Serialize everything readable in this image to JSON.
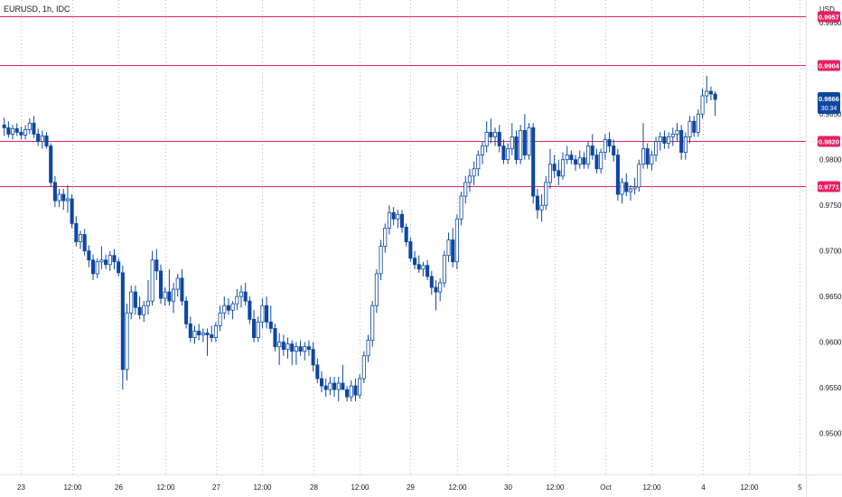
{
  "header": {
    "symbol": "EURUSD, 1h, IDC",
    "currency": "USD"
  },
  "chart_data": {
    "type": "candlestick",
    "y_axis": {
      "ylim": [
        0.9455,
        0.9975
      ],
      "ticks": [
        "0.9500",
        "0.9550",
        "0.9600",
        "0.9650",
        "0.9700",
        "0.9750",
        "0.9800",
        "0.9850",
        "0.9950"
      ]
    },
    "x_axis": {
      "xlim": [
        -1,
        189
      ],
      "ticks": [
        {
          "i": 4,
          "label": "23"
        },
        {
          "i": 16,
          "label": "12:00"
        },
        {
          "i": 27,
          "label": "26"
        },
        {
          "i": 38,
          "label": "12:00"
        },
        {
          "i": 50,
          "label": "27"
        },
        {
          "i": 61,
          "label": "12:00"
        },
        {
          "i": 73,
          "label": "28"
        },
        {
          "i": 84,
          "label": "12:00"
        },
        {
          "i": 96,
          "label": "29"
        },
        {
          "i": 107,
          "label": "12:00"
        },
        {
          "i": 119,
          "label": "30"
        },
        {
          "i": 130,
          "label": "12:00"
        },
        {
          "i": 142,
          "label": "Oct"
        },
        {
          "i": 153,
          "label": "12:00"
        },
        {
          "i": 165,
          "label": "4"
        },
        {
          "i": 176,
          "label": "12:00"
        },
        {
          "i": 188,
          "label": "5"
        }
      ]
    },
    "grid": true,
    "horizontal_levels": [
      {
        "value": 0.9957,
        "label": "0.9957"
      },
      {
        "value": 0.9904,
        "label": "0.9904"
      },
      {
        "value": 0.982,
        "label": "0.9820"
      },
      {
        "value": 0.9771,
        "label": "0.9771"
      }
    ],
    "last_price": {
      "value": 0.9866,
      "label": "0.9866",
      "countdown": "30:34"
    },
    "colors": {
      "up": "#ffffff",
      "down": "#0d47a1",
      "wick": "#0d47a1",
      "level": "#e91e63",
      "grid": "#b8bcc6"
    },
    "candles": [
      {
        "o": 0.9838,
        "h": 0.9846,
        "l": 0.9826,
        "c": 0.9835
      },
      {
        "o": 0.9835,
        "h": 0.9842,
        "l": 0.9824,
        "c": 0.9828
      },
      {
        "o": 0.9828,
        "h": 0.9838,
        "l": 0.9822,
        "c": 0.9834
      },
      {
        "o": 0.9834,
        "h": 0.984,
        "l": 0.9826,
        "c": 0.983
      },
      {
        "o": 0.983,
        "h": 0.9836,
        "l": 0.9822,
        "c": 0.9827
      },
      {
        "o": 0.9827,
        "h": 0.9838,
        "l": 0.9822,
        "c": 0.9833
      },
      {
        "o": 0.9833,
        "h": 0.9845,
        "l": 0.9828,
        "c": 0.984
      },
      {
        "o": 0.984,
        "h": 0.9848,
        "l": 0.9824,
        "c": 0.9828
      },
      {
        "o": 0.9828,
        "h": 0.9834,
        "l": 0.9815,
        "c": 0.982
      },
      {
        "o": 0.982,
        "h": 0.9832,
        "l": 0.9812,
        "c": 0.9826
      },
      {
        "o": 0.9826,
        "h": 0.983,
        "l": 0.9812,
        "c": 0.9815
      },
      {
        "o": 0.9815,
        "h": 0.9818,
        "l": 0.977,
        "c": 0.9775
      },
      {
        "o": 0.9775,
        "h": 0.9782,
        "l": 0.9748,
        "c": 0.9755
      },
      {
        "o": 0.9755,
        "h": 0.9768,
        "l": 0.9748,
        "c": 0.9762
      },
      {
        "o": 0.9762,
        "h": 0.9768,
        "l": 0.9745,
        "c": 0.9755
      },
      {
        "o": 0.9755,
        "h": 0.9772,
        "l": 0.9742,
        "c": 0.9757
      },
      {
        "o": 0.9757,
        "h": 0.9762,
        "l": 0.9725,
        "c": 0.973
      },
      {
        "o": 0.973,
        "h": 0.9738,
        "l": 0.9705,
        "c": 0.971
      },
      {
        "o": 0.971,
        "h": 0.9722,
        "l": 0.9702,
        "c": 0.9718
      },
      {
        "o": 0.9718,
        "h": 0.9724,
        "l": 0.9695,
        "c": 0.97
      },
      {
        "o": 0.97,
        "h": 0.9706,
        "l": 0.9682,
        "c": 0.969
      },
      {
        "o": 0.969,
        "h": 0.9696,
        "l": 0.9668,
        "c": 0.9675
      },
      {
        "o": 0.9675,
        "h": 0.9692,
        "l": 0.967,
        "c": 0.9688
      },
      {
        "o": 0.9688,
        "h": 0.9705,
        "l": 0.968,
        "c": 0.969
      },
      {
        "o": 0.969,
        "h": 0.9696,
        "l": 0.968,
        "c": 0.9685
      },
      {
        "o": 0.9685,
        "h": 0.97,
        "l": 0.9678,
        "c": 0.9695
      },
      {
        "o": 0.9695,
        "h": 0.9702,
        "l": 0.968,
        "c": 0.9688
      },
      {
        "o": 0.9688,
        "h": 0.9692,
        "l": 0.9672,
        "c": 0.9676
      },
      {
        "o": 0.9676,
        "h": 0.9684,
        "l": 0.9548,
        "c": 0.957
      },
      {
        "o": 0.957,
        "h": 0.9642,
        "l": 0.9558,
        "c": 0.9632
      },
      {
        "o": 0.9632,
        "h": 0.9662,
        "l": 0.9625,
        "c": 0.9655
      },
      {
        "o": 0.9655,
        "h": 0.9662,
        "l": 0.963,
        "c": 0.9638
      },
      {
        "o": 0.9638,
        "h": 0.965,
        "l": 0.9625,
        "c": 0.963
      },
      {
        "o": 0.963,
        "h": 0.9645,
        "l": 0.9622,
        "c": 0.964
      },
      {
        "o": 0.964,
        "h": 0.9668,
        "l": 0.963,
        "c": 0.9645
      },
      {
        "o": 0.9645,
        "h": 0.97,
        "l": 0.964,
        "c": 0.969
      },
      {
        "o": 0.969,
        "h": 0.9702,
        "l": 0.9668,
        "c": 0.9678
      },
      {
        "o": 0.9678,
        "h": 0.9685,
        "l": 0.9642,
        "c": 0.9648
      },
      {
        "o": 0.9648,
        "h": 0.966,
        "l": 0.964,
        "c": 0.9655
      },
      {
        "o": 0.9655,
        "h": 0.968,
        "l": 0.964,
        "c": 0.9645
      },
      {
        "o": 0.9645,
        "h": 0.9665,
        "l": 0.9632,
        "c": 0.9658
      },
      {
        "o": 0.9658,
        "h": 0.9675,
        "l": 0.965,
        "c": 0.967
      },
      {
        "o": 0.967,
        "h": 0.968,
        "l": 0.964,
        "c": 0.9645
      },
      {
        "o": 0.9645,
        "h": 0.965,
        "l": 0.9615,
        "c": 0.962
      },
      {
        "o": 0.962,
        "h": 0.9628,
        "l": 0.96,
        "c": 0.9605
      },
      {
        "o": 0.9605,
        "h": 0.9618,
        "l": 0.9598,
        "c": 0.9612
      },
      {
        "o": 0.9612,
        "h": 0.962,
        "l": 0.9602,
        "c": 0.9608
      },
      {
        "o": 0.9608,
        "h": 0.9615,
        "l": 0.96,
        "c": 0.961
      },
      {
        "o": 0.961,
        "h": 0.9615,
        "l": 0.9585,
        "c": 0.9608
      },
      {
        "o": 0.9608,
        "h": 0.9618,
        "l": 0.96,
        "c": 0.9605
      },
      {
        "o": 0.9605,
        "h": 0.9622,
        "l": 0.96,
        "c": 0.9618
      },
      {
        "o": 0.9618,
        "h": 0.964,
        "l": 0.9612,
        "c": 0.9632
      },
      {
        "o": 0.9632,
        "h": 0.965,
        "l": 0.9625,
        "c": 0.964
      },
      {
        "o": 0.964,
        "h": 0.9648,
        "l": 0.963,
        "c": 0.9635
      },
      {
        "o": 0.9635,
        "h": 0.9645,
        "l": 0.9625,
        "c": 0.9642
      },
      {
        "o": 0.9642,
        "h": 0.9658,
        "l": 0.9635,
        "c": 0.965
      },
      {
        "o": 0.965,
        "h": 0.9662,
        "l": 0.9638,
        "c": 0.9655
      },
      {
        "o": 0.9655,
        "h": 0.9665,
        "l": 0.964,
        "c": 0.9645
      },
      {
        "o": 0.9645,
        "h": 0.965,
        "l": 0.962,
        "c": 0.9625
      },
      {
        "o": 0.9625,
        "h": 0.9635,
        "l": 0.96,
        "c": 0.9605
      },
      {
        "o": 0.9605,
        "h": 0.9628,
        "l": 0.96,
        "c": 0.9622
      },
      {
        "o": 0.9622,
        "h": 0.9648,
        "l": 0.9615,
        "c": 0.964
      },
      {
        "o": 0.964,
        "h": 0.965,
        "l": 0.9615,
        "c": 0.9622
      },
      {
        "o": 0.9622,
        "h": 0.964,
        "l": 0.961,
        "c": 0.9615
      },
      {
        "o": 0.9615,
        "h": 0.962,
        "l": 0.959,
        "c": 0.9595
      },
      {
        "o": 0.9595,
        "h": 0.961,
        "l": 0.9575,
        "c": 0.96
      },
      {
        "o": 0.96,
        "h": 0.9608,
        "l": 0.9585,
        "c": 0.9592
      },
      {
        "o": 0.9592,
        "h": 0.9605,
        "l": 0.9582,
        "c": 0.9598
      },
      {
        "o": 0.9598,
        "h": 0.9602,
        "l": 0.9575,
        "c": 0.959
      },
      {
        "o": 0.959,
        "h": 0.96,
        "l": 0.9575,
        "c": 0.9595
      },
      {
        "o": 0.9595,
        "h": 0.9602,
        "l": 0.9585,
        "c": 0.959
      },
      {
        "o": 0.959,
        "h": 0.96,
        "l": 0.958,
        "c": 0.9595
      },
      {
        "o": 0.9595,
        "h": 0.9602,
        "l": 0.9585,
        "c": 0.9592
      },
      {
        "o": 0.9592,
        "h": 0.96,
        "l": 0.9568,
        "c": 0.9575
      },
      {
        "o": 0.9575,
        "h": 0.9582,
        "l": 0.9555,
        "c": 0.956
      },
      {
        "o": 0.956,
        "h": 0.9568,
        "l": 0.9545,
        "c": 0.9552
      },
      {
        "o": 0.9552,
        "h": 0.956,
        "l": 0.954,
        "c": 0.9548
      },
      {
        "o": 0.9548,
        "h": 0.9562,
        "l": 0.9542,
        "c": 0.9555
      },
      {
        "o": 0.9555,
        "h": 0.9562,
        "l": 0.954,
        "c": 0.9548
      },
      {
        "o": 0.9548,
        "h": 0.9562,
        "l": 0.9535,
        "c": 0.9555
      },
      {
        "o": 0.9555,
        "h": 0.9575,
        "l": 0.9548,
        "c": 0.9548
      },
      {
        "o": 0.9548,
        "h": 0.9552,
        "l": 0.9535,
        "c": 0.954
      },
      {
        "o": 0.954,
        "h": 0.9558,
        "l": 0.9535,
        "c": 0.9552
      },
      {
        "o": 0.9552,
        "h": 0.956,
        "l": 0.9535,
        "c": 0.9542
      },
      {
        "o": 0.9542,
        "h": 0.9565,
        "l": 0.9538,
        "c": 0.956
      },
      {
        "o": 0.956,
        "h": 0.959,
        "l": 0.9555,
        "c": 0.9585
      },
      {
        "o": 0.9585,
        "h": 0.9608,
        "l": 0.9578,
        "c": 0.9602
      },
      {
        "o": 0.9602,
        "h": 0.9645,
        "l": 0.9595,
        "c": 0.964
      },
      {
        "o": 0.964,
        "h": 0.968,
        "l": 0.9632,
        "c": 0.9675
      },
      {
        "o": 0.9675,
        "h": 0.9712,
        "l": 0.9668,
        "c": 0.9705
      },
      {
        "o": 0.9705,
        "h": 0.973,
        "l": 0.9698,
        "c": 0.9725
      },
      {
        "o": 0.9725,
        "h": 0.975,
        "l": 0.9718,
        "c": 0.9742
      },
      {
        "o": 0.9742,
        "h": 0.9748,
        "l": 0.9728,
        "c": 0.9735
      },
      {
        "o": 0.9735,
        "h": 0.9745,
        "l": 0.9725,
        "c": 0.974
      },
      {
        "o": 0.974,
        "h": 0.9745,
        "l": 0.972,
        "c": 0.9726
      },
      {
        "o": 0.9726,
        "h": 0.973,
        "l": 0.9705,
        "c": 0.971
      },
      {
        "o": 0.971,
        "h": 0.9715,
        "l": 0.9688,
        "c": 0.9692
      },
      {
        "o": 0.9692,
        "h": 0.97,
        "l": 0.968,
        "c": 0.9685
      },
      {
        "o": 0.9685,
        "h": 0.9695,
        "l": 0.9676,
        "c": 0.968
      },
      {
        "o": 0.968,
        "h": 0.9688,
        "l": 0.9672,
        "c": 0.9684
      },
      {
        "o": 0.9684,
        "h": 0.969,
        "l": 0.9668,
        "c": 0.9672
      },
      {
        "o": 0.9672,
        "h": 0.9678,
        "l": 0.9652,
        "c": 0.966
      },
      {
        "o": 0.966,
        "h": 0.9668,
        "l": 0.9635,
        "c": 0.9655
      },
      {
        "o": 0.9655,
        "h": 0.967,
        "l": 0.9645,
        "c": 0.9665
      },
      {
        "o": 0.9665,
        "h": 0.97,
        "l": 0.966,
        "c": 0.9695
      },
      {
        "o": 0.9695,
        "h": 0.972,
        "l": 0.9688,
        "c": 0.9712
      },
      {
        "o": 0.9712,
        "h": 0.9725,
        "l": 0.9682,
        "c": 0.9688
      },
      {
        "o": 0.9688,
        "h": 0.974,
        "l": 0.968,
        "c": 0.9735
      },
      {
        "o": 0.9735,
        "h": 0.9765,
        "l": 0.9728,
        "c": 0.976
      },
      {
        "o": 0.976,
        "h": 0.9782,
        "l": 0.9752,
        "c": 0.9775
      },
      {
        "o": 0.9775,
        "h": 0.979,
        "l": 0.9765,
        "c": 0.9782
      },
      {
        "o": 0.9782,
        "h": 0.9798,
        "l": 0.9772,
        "c": 0.979
      },
      {
        "o": 0.979,
        "h": 0.981,
        "l": 0.9782,
        "c": 0.9805
      },
      {
        "o": 0.9805,
        "h": 0.982,
        "l": 0.9795,
        "c": 0.9815
      },
      {
        "o": 0.9815,
        "h": 0.9842,
        "l": 0.9808,
        "c": 0.983
      },
      {
        "o": 0.983,
        "h": 0.9845,
        "l": 0.9818,
        "c": 0.9825
      },
      {
        "o": 0.9825,
        "h": 0.9835,
        "l": 0.9815,
        "c": 0.983
      },
      {
        "o": 0.983,
        "h": 0.9838,
        "l": 0.9808,
        "c": 0.9815
      },
      {
        "o": 0.9815,
        "h": 0.9822,
        "l": 0.9795,
        "c": 0.98
      },
      {
        "o": 0.98,
        "h": 0.9818,
        "l": 0.9795,
        "c": 0.9812
      },
      {
        "o": 0.9812,
        "h": 0.984,
        "l": 0.9805,
        "c": 0.9825
      },
      {
        "o": 0.9825,
        "h": 0.9832,
        "l": 0.9795,
        "c": 0.98
      },
      {
        "o": 0.98,
        "h": 0.9838,
        "l": 0.9795,
        "c": 0.9832
      },
      {
        "o": 0.9832,
        "h": 0.985,
        "l": 0.98,
        "c": 0.9805
      },
      {
        "o": 0.9805,
        "h": 0.984,
        "l": 0.98,
        "c": 0.9835
      },
      {
        "o": 0.9835,
        "h": 0.984,
        "l": 0.9752,
        "c": 0.976
      },
      {
        "o": 0.976,
        "h": 0.9768,
        "l": 0.9735,
        "c": 0.9745
      },
      {
        "o": 0.9745,
        "h": 0.9762,
        "l": 0.9732,
        "c": 0.975
      },
      {
        "o": 0.975,
        "h": 0.9782,
        "l": 0.9745,
        "c": 0.9775
      },
      {
        "o": 0.9775,
        "h": 0.9812,
        "l": 0.9768,
        "c": 0.9795
      },
      {
        "o": 0.9795,
        "h": 0.9805,
        "l": 0.978,
        "c": 0.9788
      },
      {
        "o": 0.9788,
        "h": 0.98,
        "l": 0.9772,
        "c": 0.9782
      },
      {
        "o": 0.9782,
        "h": 0.9808,
        "l": 0.9778,
        "c": 0.98
      },
      {
        "o": 0.98,
        "h": 0.9815,
        "l": 0.9795,
        "c": 0.9805
      },
      {
        "o": 0.9805,
        "h": 0.981,
        "l": 0.9795,
        "c": 0.98
      },
      {
        "o": 0.98,
        "h": 0.9805,
        "l": 0.9788,
        "c": 0.9795
      },
      {
        "o": 0.9795,
        "h": 0.981,
        "l": 0.979,
        "c": 0.9802
      },
      {
        "o": 0.9802,
        "h": 0.9808,
        "l": 0.979,
        "c": 0.9795
      },
      {
        "o": 0.9795,
        "h": 0.982,
        "l": 0.979,
        "c": 0.9815
      },
      {
        "o": 0.9815,
        "h": 0.9828,
        "l": 0.98,
        "c": 0.9805
      },
      {
        "o": 0.9805,
        "h": 0.9812,
        "l": 0.9785,
        "c": 0.979
      },
      {
        "o": 0.979,
        "h": 0.9812,
        "l": 0.9785,
        "c": 0.9808
      },
      {
        "o": 0.9808,
        "h": 0.9828,
        "l": 0.98,
        "c": 0.9822
      },
      {
        "o": 0.9822,
        "h": 0.983,
        "l": 0.9808,
        "c": 0.9815
      },
      {
        "o": 0.9815,
        "h": 0.9822,
        "l": 0.9798,
        "c": 0.9805
      },
      {
        "o": 0.9805,
        "h": 0.9812,
        "l": 0.9755,
        "c": 0.9762
      },
      {
        "o": 0.9762,
        "h": 0.978,
        "l": 0.9752,
        "c": 0.9775
      },
      {
        "o": 0.9775,
        "h": 0.9785,
        "l": 0.976,
        "c": 0.9765
      },
      {
        "o": 0.9765,
        "h": 0.9772,
        "l": 0.9755,
        "c": 0.9768
      },
      {
        "o": 0.9768,
        "h": 0.978,
        "l": 0.9762,
        "c": 0.977
      },
      {
        "o": 0.977,
        "h": 0.98,
        "l": 0.9765,
        "c": 0.9795
      },
      {
        "o": 0.9795,
        "h": 0.984,
        "l": 0.979,
        "c": 0.9812
      },
      {
        "o": 0.9812,
        "h": 0.9818,
        "l": 0.979,
        "c": 0.9795
      },
      {
        "o": 0.9795,
        "h": 0.981,
        "l": 0.9788,
        "c": 0.9805
      },
      {
        "o": 0.9805,
        "h": 0.9825,
        "l": 0.9798,
        "c": 0.982
      },
      {
        "o": 0.982,
        "h": 0.983,
        "l": 0.981,
        "c": 0.9825
      },
      {
        "o": 0.9825,
        "h": 0.9832,
        "l": 0.9812,
        "c": 0.9818
      },
      {
        "o": 0.9818,
        "h": 0.983,
        "l": 0.9812,
        "c": 0.9825
      },
      {
        "o": 0.9825,
        "h": 0.9835,
        "l": 0.9815,
        "c": 0.9828
      },
      {
        "o": 0.9828,
        "h": 0.984,
        "l": 0.982,
        "c": 0.9832
      },
      {
        "o": 0.9832,
        "h": 0.9838,
        "l": 0.98,
        "c": 0.9808
      },
      {
        "o": 0.9808,
        "h": 0.983,
        "l": 0.98,
        "c": 0.9825
      },
      {
        "o": 0.9825,
        "h": 0.9848,
        "l": 0.9818,
        "c": 0.9842
      },
      {
        "o": 0.9842,
        "h": 0.9848,
        "l": 0.9825,
        "c": 0.983
      },
      {
        "o": 0.983,
        "h": 0.9855,
        "l": 0.9825,
        "c": 0.985
      },
      {
        "o": 0.985,
        "h": 0.9878,
        "l": 0.9845,
        "c": 0.987
      },
      {
        "o": 0.987,
        "h": 0.9892,
        "l": 0.9862,
        "c": 0.9875
      },
      {
        "o": 0.9875,
        "h": 0.988,
        "l": 0.9865,
        "c": 0.9872
      },
      {
        "o": 0.9872,
        "h": 0.9875,
        "l": 0.9848,
        "c": 0.9866
      }
    ]
  }
}
